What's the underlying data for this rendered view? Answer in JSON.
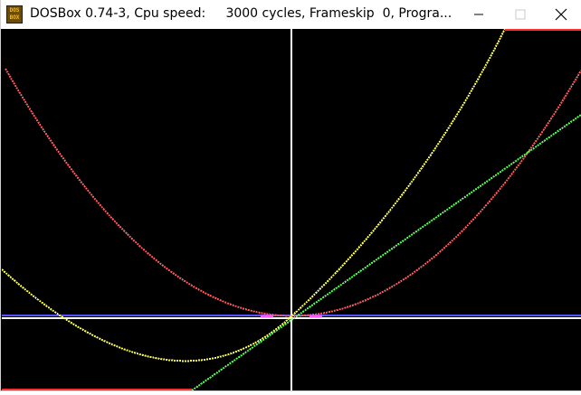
{
  "window": {
    "title": "DOSBox 0.74-3, Cpu speed:     3000 cycles, Frameskip  0, Progra...",
    "icon_text": "DOS BOX",
    "icon": "dosbox-icon",
    "controls": {
      "minimize_icon": "minimize-icon",
      "maximize_icon": "maximize-icon",
      "close_icon": "close-icon"
    }
  },
  "colors": {
    "background": "#000000",
    "axis": "#ffffff",
    "red_curve": "#ff5a5a",
    "yellow_curve": "#ffff55",
    "green_line": "#55ff55",
    "blue_line": "#5555ff",
    "magenta_marks": "#ff55ff"
  }
}
